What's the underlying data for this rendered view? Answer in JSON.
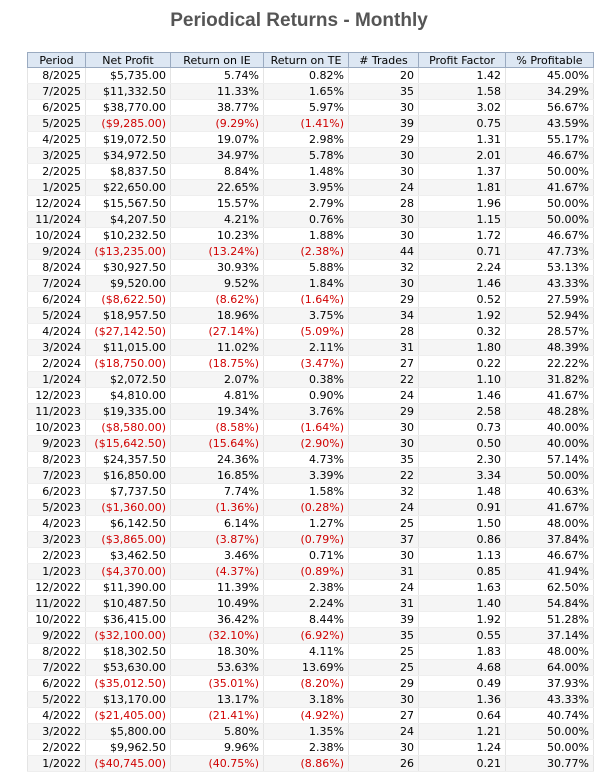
{
  "header": {
    "title": "Periodical Returns - Monthly"
  },
  "table": {
    "columns": [
      "Period",
      "Net Profit",
      "Return on IE",
      "Return on TE",
      "# Trades",
      "Profit Factor",
      "% Profitable"
    ],
    "rows": [
      [
        "8/2025",
        "$5,735.00",
        "5.74%",
        "0.82%",
        "20",
        "1.42",
        "45.00%"
      ],
      [
        "7/2025",
        "$11,332.50",
        "11.33%",
        "1.65%",
        "35",
        "1.58",
        "34.29%"
      ],
      [
        "6/2025",
        "$38,770.00",
        "38.77%",
        "5.97%",
        "30",
        "3.02",
        "56.67%"
      ],
      [
        "5/2025",
        "($9,285.00)",
        "(9.29%)",
        "(1.41%)",
        "39",
        "0.75",
        "43.59%"
      ],
      [
        "4/2025",
        "$19,072.50",
        "19.07%",
        "2.98%",
        "29",
        "1.31",
        "55.17%"
      ],
      [
        "3/2025",
        "$34,972.50",
        "34.97%",
        "5.78%",
        "30",
        "2.01",
        "46.67%"
      ],
      [
        "2/2025",
        "$8,837.50",
        "8.84%",
        "1.48%",
        "30",
        "1.37",
        "50.00%"
      ],
      [
        "1/2025",
        "$22,650.00",
        "22.65%",
        "3.95%",
        "24",
        "1.81",
        "41.67%"
      ],
      [
        "12/2024",
        "$15,567.50",
        "15.57%",
        "2.79%",
        "28",
        "1.96",
        "50.00%"
      ],
      [
        "11/2024",
        "$4,207.50",
        "4.21%",
        "0.76%",
        "30",
        "1.15",
        "50.00%"
      ],
      [
        "10/2024",
        "$10,232.50",
        "10.23%",
        "1.88%",
        "30",
        "1.72",
        "46.67%"
      ],
      [
        "9/2024",
        "($13,235.00)",
        "(13.24%)",
        "(2.38%)",
        "44",
        "0.71",
        "47.73%"
      ],
      [
        "8/2024",
        "$30,927.50",
        "30.93%",
        "5.88%",
        "32",
        "2.24",
        "53.13%"
      ],
      [
        "7/2024",
        "$9,520.00",
        "9.52%",
        "1.84%",
        "30",
        "1.46",
        "43.33%"
      ],
      [
        "6/2024",
        "($8,622.50)",
        "(8.62%)",
        "(1.64%)",
        "29",
        "0.52",
        "27.59%"
      ],
      [
        "5/2024",
        "$18,957.50",
        "18.96%",
        "3.75%",
        "34",
        "1.92",
        "52.94%"
      ],
      [
        "4/2024",
        "($27,142.50)",
        "(27.14%)",
        "(5.09%)",
        "28",
        "0.32",
        "28.57%"
      ],
      [
        "3/2024",
        "$11,015.00",
        "11.02%",
        "2.11%",
        "31",
        "1.80",
        "48.39%"
      ],
      [
        "2/2024",
        "($18,750.00)",
        "(18.75%)",
        "(3.47%)",
        "27",
        "0.22",
        "22.22%"
      ],
      [
        "1/2024",
        "$2,072.50",
        "2.07%",
        "0.38%",
        "22",
        "1.10",
        "31.82%"
      ],
      [
        "12/2023",
        "$4,810.00",
        "4.81%",
        "0.90%",
        "24",
        "1.46",
        "41.67%"
      ],
      [
        "11/2023",
        "$19,335.00",
        "19.34%",
        "3.76%",
        "29",
        "2.58",
        "48.28%"
      ],
      [
        "10/2023",
        "($8,580.00)",
        "(8.58%)",
        "(1.64%)",
        "30",
        "0.73",
        "40.00%"
      ],
      [
        "9/2023",
        "($15,642.50)",
        "(15.64%)",
        "(2.90%)",
        "30",
        "0.50",
        "40.00%"
      ],
      [
        "8/2023",
        "$24,357.50",
        "24.36%",
        "4.73%",
        "35",
        "2.30",
        "57.14%"
      ],
      [
        "7/2023",
        "$16,850.00",
        "16.85%",
        "3.39%",
        "22",
        "3.34",
        "50.00%"
      ],
      [
        "6/2023",
        "$7,737.50",
        "7.74%",
        "1.58%",
        "32",
        "1.48",
        "40.63%"
      ],
      [
        "5/2023",
        "($1,360.00)",
        "(1.36%)",
        "(0.28%)",
        "24",
        "0.91",
        "41.67%"
      ],
      [
        "4/2023",
        "$6,142.50",
        "6.14%",
        "1.27%",
        "25",
        "1.50",
        "48.00%"
      ],
      [
        "3/2023",
        "($3,865.00)",
        "(3.87%)",
        "(0.79%)",
        "37",
        "0.86",
        "37.84%"
      ],
      [
        "2/2023",
        "$3,462.50",
        "3.46%",
        "0.71%",
        "30",
        "1.13",
        "46.67%"
      ],
      [
        "1/2023",
        "($4,370.00)",
        "(4.37%)",
        "(0.89%)",
        "31",
        "0.85",
        "41.94%"
      ],
      [
        "12/2022",
        "$11,390.00",
        "11.39%",
        "2.38%",
        "24",
        "1.63",
        "62.50%"
      ],
      [
        "11/2022",
        "$10,487.50",
        "10.49%",
        "2.24%",
        "31",
        "1.40",
        "54.84%"
      ],
      [
        "10/2022",
        "$36,415.00",
        "36.42%",
        "8.44%",
        "39",
        "1.92",
        "51.28%"
      ],
      [
        "9/2022",
        "($32,100.00)",
        "(32.10%)",
        "(6.92%)",
        "35",
        "0.55",
        "37.14%"
      ],
      [
        "8/2022",
        "$18,302.50",
        "18.30%",
        "4.11%",
        "25",
        "1.83",
        "48.00%"
      ],
      [
        "7/2022",
        "$53,630.00",
        "53.63%",
        "13.69%",
        "25",
        "4.68",
        "64.00%"
      ],
      [
        "6/2022",
        "($35,012.50)",
        "(35.01%)",
        "(8.20%)",
        "29",
        "0.49",
        "37.93%"
      ],
      [
        "5/2022",
        "$13,170.00",
        "13.17%",
        "3.18%",
        "30",
        "1.36",
        "43.33%"
      ],
      [
        "4/2022",
        "($21,405.00)",
        "(21.41%)",
        "(4.92%)",
        "27",
        "0.64",
        "40.74%"
      ],
      [
        "3/2022",
        "$5,800.00",
        "5.80%",
        "1.35%",
        "24",
        "1.21",
        "50.00%"
      ],
      [
        "2/2022",
        "$9,962.50",
        "9.96%",
        "2.38%",
        "30",
        "1.24",
        "50.00%"
      ],
      [
        "1/2022",
        "($40,745.00)",
        "(40.75%)",
        "(8.86%)",
        "26",
        "0.21",
        "30.77%"
      ]
    ]
  }
}
